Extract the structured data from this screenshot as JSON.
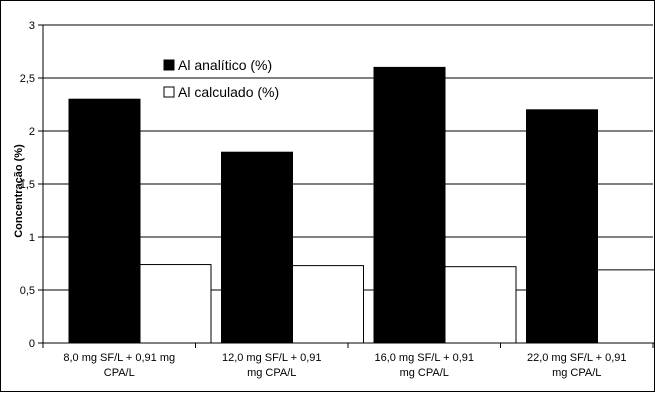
{
  "chart_data": {
    "type": "bar",
    "categories": [
      [
        "8,0 mg SF/L + 0,91 mg",
        "CPA/L"
      ],
      [
        "12,0 mg SF/L + 0,91",
        "mg CPA/L"
      ],
      [
        "16,0 mg SF/L + 0,91",
        "mg CPA/L"
      ],
      [
        "22,0 mg SF/L + 0,91",
        "mg CPA/L"
      ]
    ],
    "series": [
      {
        "name": "Al analítico (%)",
        "values": [
          2.3,
          1.8,
          2.6,
          2.2
        ],
        "color": "#000000"
      },
      {
        "name": "Al calculado (%)",
        "values": [
          0.74,
          0.73,
          0.72,
          0.69
        ],
        "color": "#ffffff"
      }
    ],
    "title": "",
    "xlabel": "",
    "ylabel": "Concentração (%)",
    "ylim": [
      0,
      3
    ],
    "yticks": [
      0,
      0.5,
      1,
      1.5,
      2,
      2.5,
      3
    ],
    "ytick_labels": [
      "0",
      "0,5",
      "1",
      "1,5",
      "2",
      "2,5",
      "3"
    ],
    "grid": true,
    "legend_position": "top-center"
  }
}
